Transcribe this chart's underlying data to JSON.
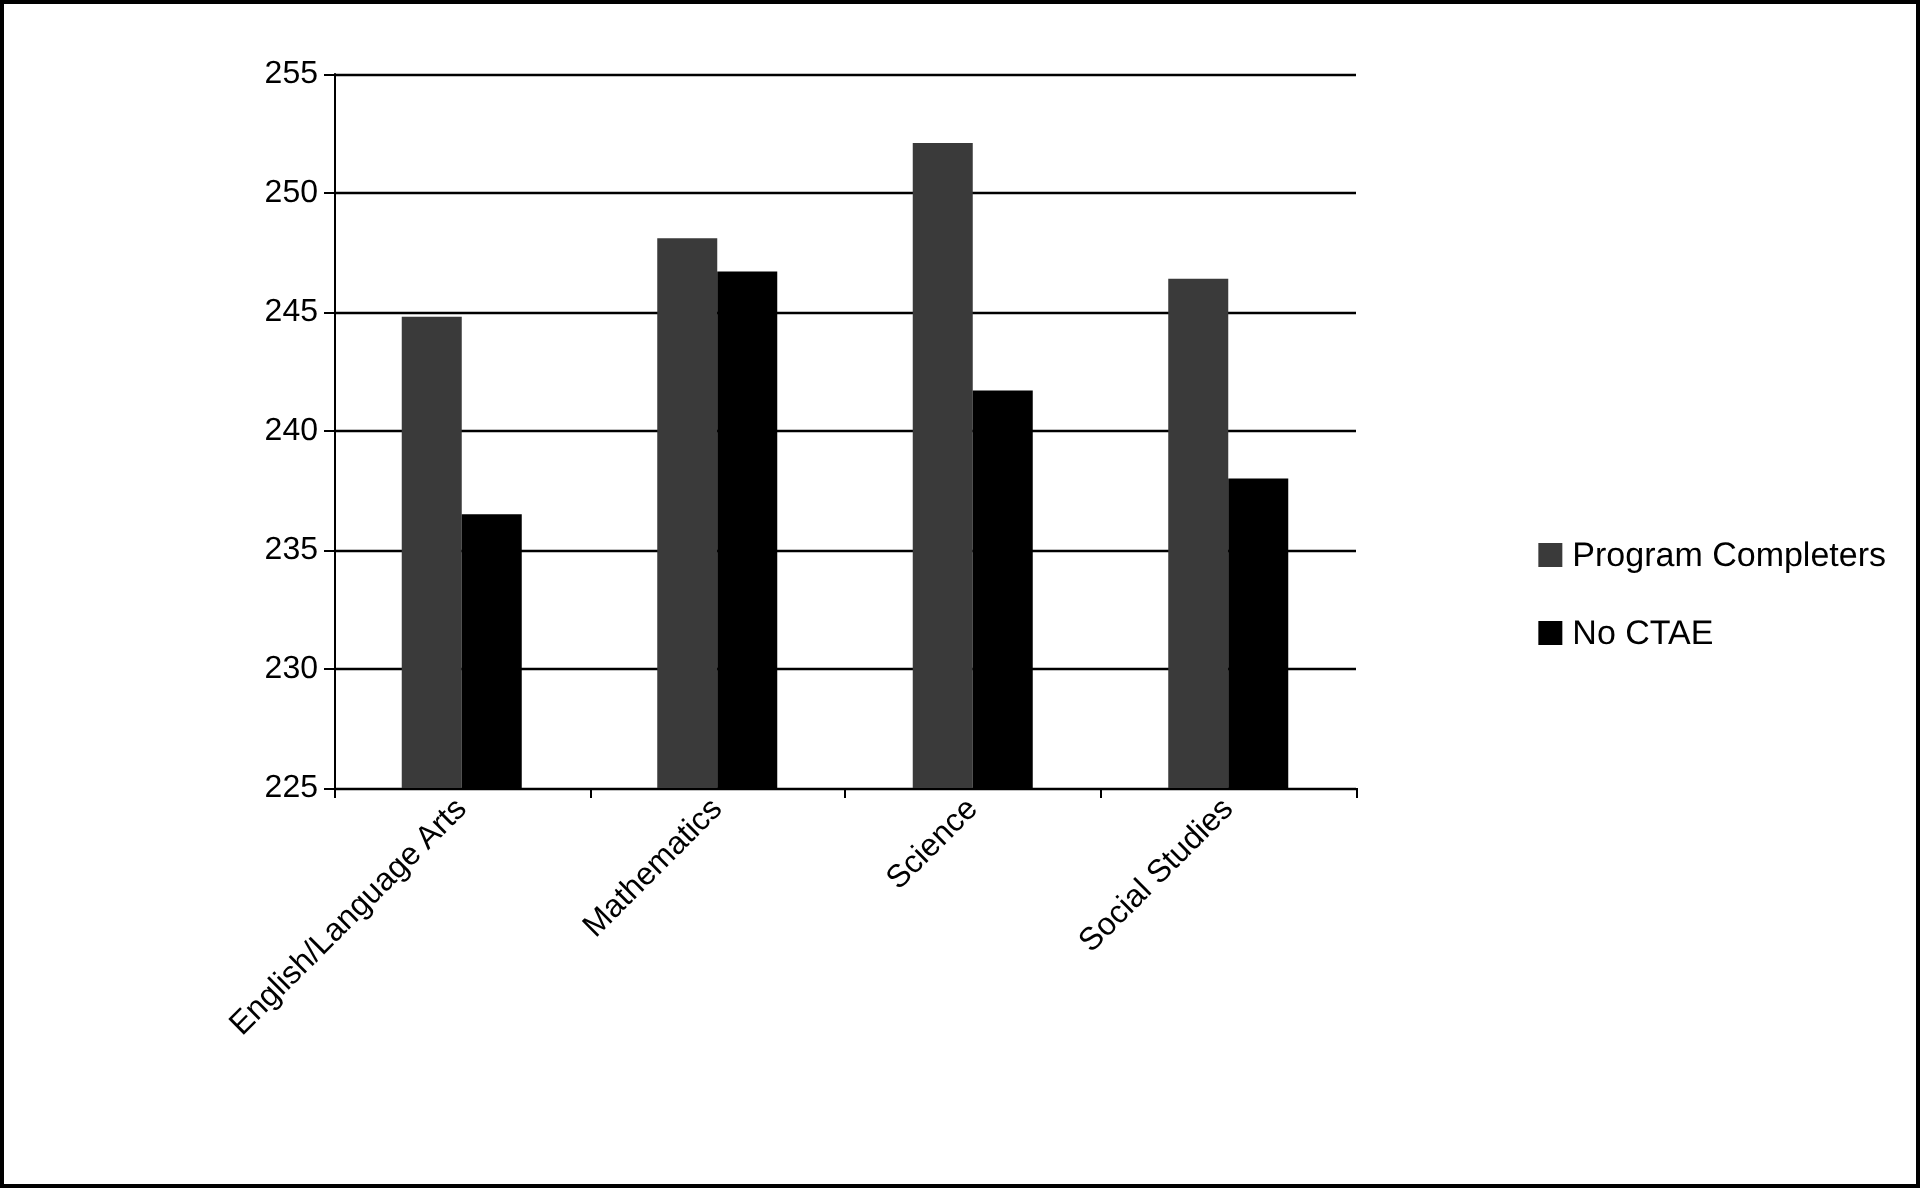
{
  "chart_data": {
    "type": "bar",
    "categories": [
      "English/Language Arts",
      "Mathematics",
      "Science",
      "Social Studies"
    ],
    "series": [
      {
        "name": "Program Completers",
        "color": "#3a3a3a",
        "values": [
          244.8,
          248.1,
          252.1,
          246.4
        ]
      },
      {
        "name": "No CTAE",
        "color": "#000000",
        "values": [
          236.5,
          246.7,
          241.7,
          238.0
        ]
      }
    ],
    "ylim": [
      225,
      255
    ],
    "yticks": [
      225,
      230,
      235,
      240,
      245,
      250,
      255
    ],
    "grid": "y",
    "legend": "right"
  }
}
